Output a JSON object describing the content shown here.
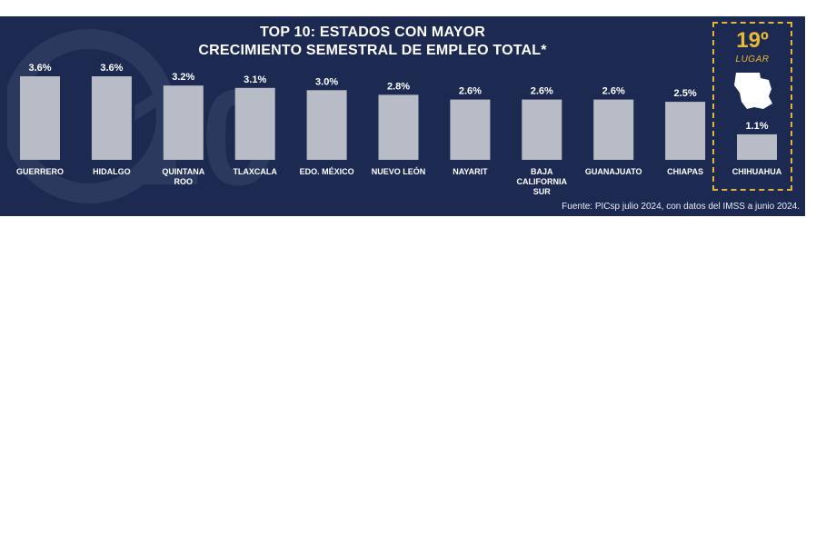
{
  "title_lines": [
    "TOP 10: ESTADOS CON MAYOR",
    "CRECIMIENTO SEMESTRAL DE EMPLEO TOTAL*"
  ],
  "highlight": {
    "rank": "19º",
    "rank_label": "LUGAR"
  },
  "source_note": "Fuente: PICsp julio 2024, con datos del IMSS a junio 2024.",
  "colors": {
    "background": "#1c2a52",
    "bar": "#b8bcc6",
    "text": "#ffffff",
    "accent": "#e0b43c"
  },
  "chart_data": {
    "type": "bar",
    "categories": [
      [
        "GUERRERO"
      ],
      [
        "HIDALGO"
      ],
      [
        "QUINTANA",
        "ROO"
      ],
      [
        "TLAXCALA"
      ],
      [
        "EDO. MÉXICO"
      ],
      [
        "NUEVO LEÓN"
      ],
      [
        "NAYARIT"
      ],
      [
        "BAJA",
        "CALIFORNIA",
        "SUR"
      ],
      [
        "GUANAJUATO"
      ],
      [
        "CHIAPAS"
      ],
      [
        "CHIHUAHUA"
      ]
    ],
    "values": [
      3.6,
      3.6,
      3.2,
      3.1,
      3.0,
      2.8,
      2.6,
      2.6,
      2.6,
      2.5,
      1.1
    ],
    "value_labels": [
      "3.6%",
      "3.6%",
      "3.2%",
      "3.1%",
      "3.0%",
      "2.8%",
      "2.6%",
      "2.6%",
      "2.6%",
      "2.5%",
      "1.1%"
    ],
    "ylim": [
      0,
      3.6
    ],
    "grid": false,
    "legend": "none"
  }
}
